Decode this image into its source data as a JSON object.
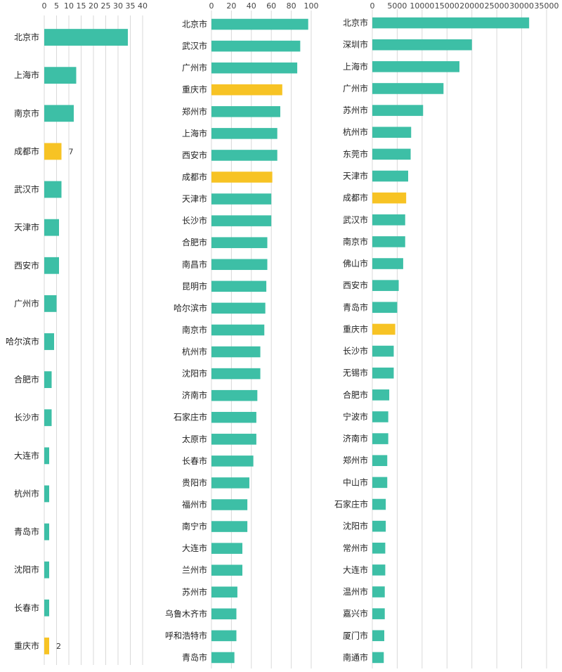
{
  "colors": {
    "default": "#3dbfa6",
    "highlight": "#f7c324",
    "grid": "#d9d9d9"
  },
  "chart_data": [
    {
      "type": "bar",
      "orientation": "horizontal",
      "xlim": [
        0,
        40
      ],
      "ticks": [
        "0",
        "5",
        "10",
        "15",
        "20",
        "25",
        "30",
        "35",
        "40"
      ],
      "grid": true,
      "categories": [
        "北京市",
        "上海市",
        "南京市",
        "成都市",
        "武汉市",
        "天津市",
        "西安市",
        "广州市",
        "哈尔滨市",
        "合肥市",
        "长沙市",
        "大连市",
        "杭州市",
        "青岛市",
        "沈阳市",
        "长春市",
        "重庆市"
      ],
      "values": [
        34,
        13,
        12,
        7,
        7,
        6,
        6,
        5,
        4,
        3,
        3,
        2,
        2,
        2,
        2,
        2,
        2
      ],
      "highlight": [
        "成都市",
        "重庆市"
      ],
      "data_labels": [
        {
          "category": "成都市",
          "text": "7"
        },
        {
          "category": "重庆市",
          "text": "2"
        }
      ]
    },
    {
      "type": "bar",
      "orientation": "horizontal",
      "xlim": [
        0,
        100
      ],
      "ticks": [
        "0",
        "20",
        "40",
        "60",
        "80",
        "100"
      ],
      "grid": true,
      "categories": [
        "北京市",
        "武汉市",
        "广州市",
        "重庆市",
        "郑州市",
        "上海市",
        "西安市",
        "成都市",
        "天津市",
        "长沙市",
        "合肥市",
        "南昌市",
        "昆明市",
        "哈尔滨市",
        "南京市",
        "杭州市",
        "沈阳市",
        "济南市",
        "石家庄市",
        "太原市",
        "长春市",
        "贵阳市",
        "福州市",
        "南宁市",
        "大连市",
        "兰州市",
        "苏州市",
        "乌鲁木齐市",
        "呼和浩特市",
        "青岛市"
      ],
      "values": [
        97,
        89,
        86,
        71,
        69,
        66,
        66,
        61,
        60,
        60,
        56,
        56,
        55,
        54,
        53,
        49,
        49,
        46,
        45,
        45,
        42,
        38,
        36,
        36,
        31,
        31,
        26,
        25,
        25,
        23
      ],
      "highlight": [
        "重庆市",
        "成都市"
      ]
    },
    {
      "type": "bar",
      "orientation": "horizontal",
      "xlim": [
        0,
        35000
      ],
      "ticks": [
        "0",
        "5000",
        "10000",
        "15000",
        "20000",
        "25000",
        "30000",
        "35000"
      ],
      "grid": true,
      "categories": [
        "北京市",
        "深圳市",
        "上海市",
        "广州市",
        "苏州市",
        "杭州市",
        "东莞市",
        "天津市",
        "成都市",
        "武汉市",
        "南京市",
        "佛山市",
        "西安市",
        "青岛市",
        "重庆市",
        "长沙市",
        "无锡市",
        "合肥市",
        "宁波市",
        "济南市",
        "郑州市",
        "中山市",
        "石家庄市",
        "沈阳市",
        "常州市",
        "大连市",
        "温州市",
        "嘉兴市",
        "厦门市",
        "南通市"
      ],
      "values": [
        31500,
        20000,
        17500,
        14300,
        10200,
        7800,
        7700,
        7200,
        6800,
        6600,
        6600,
        6200,
        5300,
        5000,
        4600,
        4300,
        4300,
        3400,
        3200,
        3200,
        3000,
        3000,
        2700,
        2700,
        2600,
        2600,
        2500,
        2500,
        2400,
        2300
      ],
      "highlight": [
        "成都市",
        "重庆市"
      ]
    }
  ]
}
